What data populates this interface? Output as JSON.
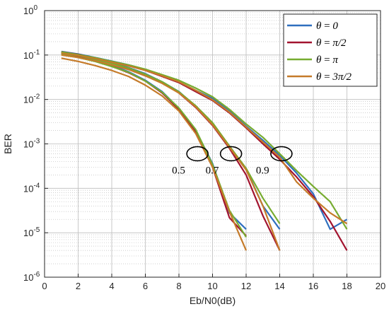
{
  "chart_data": {
    "type": "line",
    "title": "",
    "xlabel": "Eb/N0(dB)",
    "ylabel": "BER",
    "xlim": [
      0,
      20
    ],
    "ylim": [
      1e-06,
      1
    ],
    "yscale": "log",
    "grid": true,
    "minor_grid": true,
    "legend_position": "top-right",
    "x_ticks": [
      "0",
      "2",
      "4",
      "6",
      "8",
      "10",
      "12",
      "14",
      "16",
      "18",
      "20"
    ],
    "y_ticks": [
      {
        "base": "10",
        "exp": "-6",
        "value": 1e-06
      },
      {
        "base": "10",
        "exp": "-5",
        "value": 1e-05
      },
      {
        "base": "10",
        "exp": "-4",
        "value": 0.0001
      },
      {
        "base": "10",
        "exp": "-3",
        "value": 0.001
      },
      {
        "base": "10",
        "exp": "-2",
        "value": 0.01
      },
      {
        "base": "10",
        "exp": "-1",
        "value": 0.1
      },
      {
        "base": "10",
        "exp": "0",
        "value": 1
      }
    ],
    "series": [
      {
        "name": "θ = 0",
        "color": "#2f6fbf",
        "groups": [
          [
            [
              1,
              0.11
            ],
            [
              2,
              0.093
            ],
            [
              3,
              0.075
            ],
            [
              4,
              0.058
            ],
            [
              5,
              0.042
            ],
            [
              6,
              0.027
            ],
            [
              7,
              0.015
            ],
            [
              8,
              0.0063
            ],
            [
              9,
              0.002
            ],
            [
              10,
              0.00036
            ],
            [
              11,
              2.8e-05
            ],
            [
              12,
              1.2e-05
            ]
          ],
          [
            [
              1,
              0.115
            ],
            [
              2,
              0.1
            ],
            [
              3,
              0.083
            ],
            [
              4,
              0.068
            ],
            [
              5,
              0.052
            ],
            [
              6,
              0.038
            ],
            [
              7,
              0.025
            ],
            [
              8,
              0.015
            ],
            [
              9,
              0.007
            ],
            [
              10,
              0.0028
            ],
            [
              11,
              0.0009
            ],
            [
              12,
              0.00027
            ],
            [
              13,
              4e-05
            ],
            [
              14,
              1.2e-05
            ]
          ],
          [
            [
              1,
              0.12
            ],
            [
              2,
              0.105
            ],
            [
              3,
              0.088
            ],
            [
              4,
              0.073
            ],
            [
              5,
              0.06
            ],
            [
              6,
              0.047
            ],
            [
              7,
              0.035
            ],
            [
              8,
              0.025
            ],
            [
              9,
              0.016
            ],
            [
              10,
              0.0105
            ],
            [
              11,
              0.0055
            ],
            [
              12,
              0.0025
            ],
            [
              13,
              0.0012
            ],
            [
              14,
              0.00055
            ],
            [
              15,
              0.00022
            ],
            [
              16,
              7.5e-05
            ],
            [
              17,
              1.2e-05
            ],
            [
              18,
              2e-05
            ]
          ]
        ]
      },
      {
        "name": "θ = π/2",
        "color": "#a2142f",
        "groups": [
          [
            [
              1,
              0.108
            ],
            [
              2,
              0.09
            ],
            [
              3,
              0.073
            ],
            [
              4,
              0.056
            ],
            [
              5,
              0.04
            ],
            [
              6,
              0.026
            ],
            [
              7,
              0.014
            ],
            [
              8,
              0.006
            ],
            [
              9,
              0.0019
            ],
            [
              10,
              0.0003
            ],
            [
              11,
              2.2e-05
            ],
            [
              12,
              8.5e-06
            ]
          ],
          [
            [
              1,
              0.113
            ],
            [
              2,
              0.098
            ],
            [
              3,
              0.081
            ],
            [
              4,
              0.066
            ],
            [
              5,
              0.05
            ],
            [
              6,
              0.036
            ],
            [
              7,
              0.024
            ],
            [
              8,
              0.014
            ],
            [
              9,
              0.0066
            ],
            [
              10,
              0.0026
            ],
            [
              11,
              0.0008
            ],
            [
              12,
              0.0002
            ],
            [
              13,
              2.4e-05
            ],
            [
              14,
              4e-06
            ]
          ],
          [
            [
              1,
              0.118
            ],
            [
              2,
              0.103
            ],
            [
              3,
              0.086
            ],
            [
              4,
              0.071
            ],
            [
              5,
              0.058
            ],
            [
              6,
              0.045
            ],
            [
              7,
              0.033
            ],
            [
              8,
              0.024
            ],
            [
              9,
              0.015
            ],
            [
              10,
              0.0095
            ],
            [
              11,
              0.005
            ],
            [
              12,
              0.0023
            ],
            [
              13,
              0.001
            ],
            [
              14,
              0.00045
            ],
            [
              15,
              0.00018
            ],
            [
              16,
              6.5e-05
            ],
            [
              17,
              1.8e-05
            ],
            [
              18,
              4e-06
            ]
          ]
        ]
      },
      {
        "name": "θ = π",
        "color": "#77ac30",
        "groups": [
          [
            [
              1,
              0.105
            ],
            [
              2,
              0.088
            ],
            [
              3,
              0.072
            ],
            [
              4,
              0.055
            ],
            [
              5,
              0.041
            ],
            [
              6,
              0.026
            ],
            [
              7,
              0.0145
            ],
            [
              8,
              0.0064
            ],
            [
              9,
              0.0021
            ],
            [
              10,
              0.00034
            ],
            [
              11,
              3.2e-05
            ],
            [
              12,
              8e-06
            ]
          ],
          [
            [
              1,
              0.112
            ],
            [
              2,
              0.097
            ],
            [
              3,
              0.08
            ],
            [
              4,
              0.065
            ],
            [
              5,
              0.051
            ],
            [
              6,
              0.037
            ],
            [
              7,
              0.025
            ],
            [
              8,
              0.0148
            ],
            [
              9,
              0.0072
            ],
            [
              10,
              0.003
            ],
            [
              11,
              0.0009
            ],
            [
              12,
              0.00028
            ],
            [
              13,
              6e-05
            ],
            [
              14,
              1.6e-05
            ]
          ],
          [
            [
              1,
              0.117
            ],
            [
              2,
              0.102
            ],
            [
              3,
              0.087
            ],
            [
              4,
              0.072
            ],
            [
              5,
              0.06
            ],
            [
              6,
              0.048
            ],
            [
              7,
              0.036
            ],
            [
              8,
              0.027
            ],
            [
              9,
              0.018
            ],
            [
              10,
              0.0115
            ],
            [
              11,
              0.006
            ],
            [
              12,
              0.0028
            ],
            [
              13,
              0.0014
            ],
            [
              14,
              0.0006
            ],
            [
              15,
              0.00025
            ],
            [
              16,
              0.00011
            ],
            [
              17,
              5e-05
            ],
            [
              18,
              1.2e-05
            ]
          ]
        ]
      },
      {
        "name": "θ = 3π/2",
        "color": "#c57b2a",
        "groups": [
          [
            [
              1,
              0.085
            ],
            [
              2,
              0.072
            ],
            [
              3,
              0.058
            ],
            [
              4,
              0.045
            ],
            [
              5,
              0.033
            ],
            [
              6,
              0.021
            ],
            [
              7,
              0.012
            ],
            [
              8,
              0.0055
            ],
            [
              9,
              0.0017
            ],
            [
              10,
              0.0003
            ],
            [
              11,
              3e-05
            ],
            [
              12,
              4e-06
            ]
          ],
          [
            [
              1,
              0.1
            ],
            [
              2,
              0.088
            ],
            [
              3,
              0.074
            ],
            [
              4,
              0.06
            ],
            [
              5,
              0.047
            ],
            [
              6,
              0.034
            ],
            [
              7,
              0.023
            ],
            [
              8,
              0.014
            ],
            [
              9,
              0.0068
            ],
            [
              10,
              0.0027
            ],
            [
              11,
              0.00085
            ],
            [
              12,
              0.00026
            ],
            [
              13,
              4e-05
            ],
            [
              14,
              4e-06
            ]
          ],
          [
            [
              1,
              0.11
            ],
            [
              2,
              0.098
            ],
            [
              3,
              0.084
            ],
            [
              4,
              0.069
            ],
            [
              5,
              0.057
            ],
            [
              6,
              0.045
            ],
            [
              7,
              0.034
            ],
            [
              8,
              0.025
            ],
            [
              9,
              0.016
            ],
            [
              10,
              0.0098
            ],
            [
              11,
              0.0052
            ],
            [
              12,
              0.0024
            ],
            [
              13,
              0.0011
            ],
            [
              14,
              0.0005
            ],
            [
              15,
              0.00014
            ],
            [
              16,
              6e-05
            ],
            [
              17,
              2.8e-05
            ],
            [
              18,
              1.6e-05
            ]
          ]
        ]
      }
    ],
    "legend": [
      {
        "prefix": "θ",
        "eq": " = ",
        "value": "0"
      },
      {
        "prefix": "θ",
        "eq": " = ",
        "value": "π/2"
      },
      {
        "prefix": "θ",
        "eq": " = ",
        "value": "π"
      },
      {
        "prefix": "θ",
        "eq": " = ",
        "value": "3π/2"
      }
    ],
    "annotations": [
      {
        "text": "0.5",
        "x": 9.1,
        "y": 0.0006
      },
      {
        "text": "0.7",
        "x": 11.1,
        "y": 0.0006
      },
      {
        "text": "0.9",
        "x": 14.1,
        "y": 0.0006
      }
    ]
  }
}
